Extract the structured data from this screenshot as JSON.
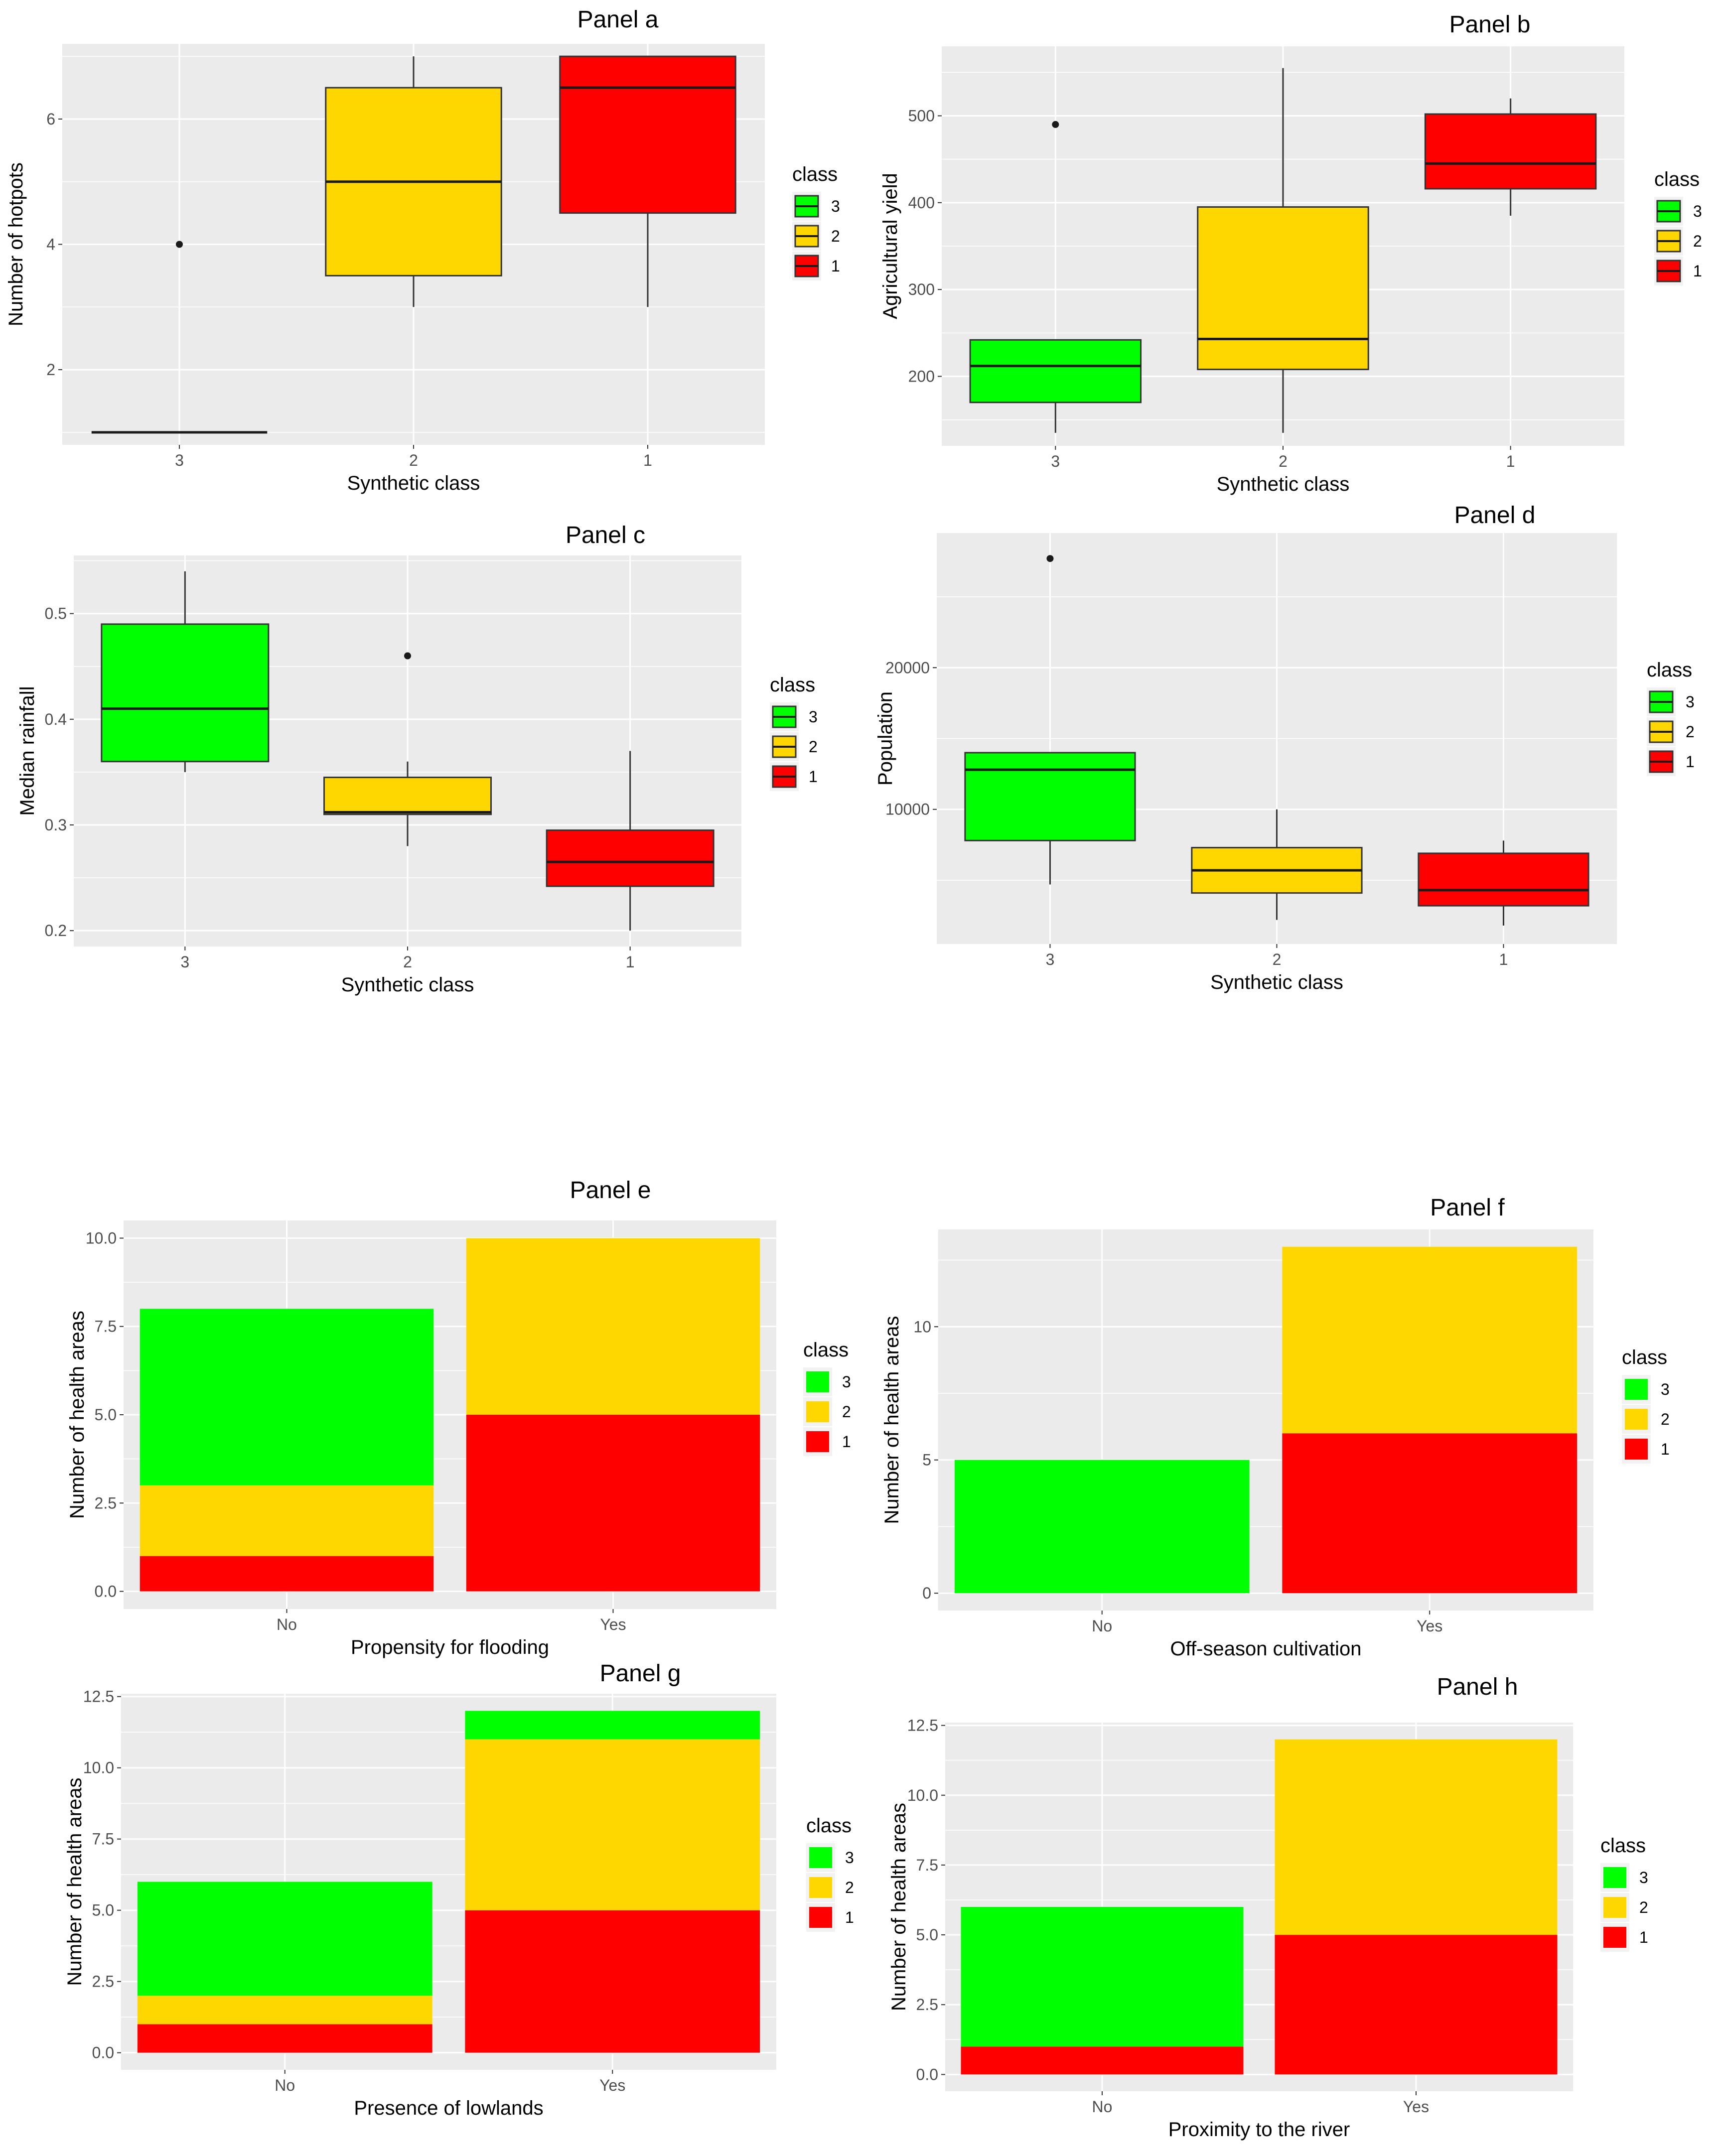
{
  "colors": {
    "class_3": "#00ff00",
    "class_2": "#ffd700",
    "class_1": "#ff0000",
    "panel_bg": "#ebebeb",
    "grid": "#ffffff"
  },
  "chart_data": [
    {
      "id": "a",
      "type": "box",
      "title": "Panel a",
      "xlabel": "Synthetic class",
      "ylabel": "Number of hotpots",
      "ylim": [
        0.8,
        7.2
      ],
      "yticks": [
        2,
        4,
        6
      ],
      "categories": [
        "3",
        "2",
        "1"
      ],
      "boxes": [
        {
          "class": "3",
          "min": 1,
          "q1": 1,
          "median": 1,
          "q3": 1,
          "max": 1,
          "outliers": [
            4
          ]
        },
        {
          "class": "2",
          "min": 3,
          "q1": 3.5,
          "median": 5,
          "q3": 6.5,
          "max": 7,
          "outliers": []
        },
        {
          "class": "1",
          "min": 3,
          "q1": 4.5,
          "median": 6.5,
          "q3": 7,
          "max": 7,
          "outliers": []
        }
      ],
      "legend": {
        "title": "class",
        "entries": [
          "3",
          "2",
          "1"
        ]
      }
    },
    {
      "id": "b",
      "type": "box",
      "title": "Panel b",
      "xlabel": "Synthetic class",
      "ylabel": "Agricultural yield",
      "ylim": [
        120,
        580
      ],
      "yticks": [
        200,
        300,
        400,
        500
      ],
      "categories": [
        "3",
        "2",
        "1"
      ],
      "boxes": [
        {
          "class": "3",
          "min": 135,
          "q1": 170,
          "median": 212,
          "q3": 242,
          "max": 242,
          "outliers": [
            490
          ]
        },
        {
          "class": "2",
          "min": 135,
          "q1": 208,
          "median": 243,
          "q3": 395,
          "max": 555,
          "outliers": []
        },
        {
          "class": "1",
          "min": 385,
          "q1": 416,
          "median": 445,
          "q3": 502,
          "max": 520,
          "outliers": []
        }
      ],
      "legend": {
        "title": "class",
        "entries": [
          "3",
          "2",
          "1"
        ]
      }
    },
    {
      "id": "c",
      "type": "box",
      "title": "Panel c",
      "xlabel": "Synthetic class",
      "ylabel": "Median rainfall",
      "ylim": [
        0.185,
        0.555
      ],
      "yticks": [
        0.2,
        0.3,
        0.4,
        0.5
      ],
      "categories": [
        "3",
        "2",
        "1"
      ],
      "boxes": [
        {
          "class": "3",
          "min": 0.35,
          "q1": 0.36,
          "median": 0.41,
          "q3": 0.49,
          "max": 0.54,
          "outliers": []
        },
        {
          "class": "2",
          "min": 0.28,
          "q1": 0.31,
          "median": 0.312,
          "q3": 0.345,
          "max": 0.36,
          "outliers": [
            0.46
          ]
        },
        {
          "class": "1",
          "min": 0.2,
          "q1": 0.242,
          "median": 0.265,
          "q3": 0.295,
          "max": 0.37,
          "outliers": []
        }
      ],
      "legend": {
        "title": "class",
        "entries": [
          "3",
          "2",
          "1"
        ]
      }
    },
    {
      "id": "d",
      "type": "box",
      "title": "Panel d",
      "xlabel": "Synthetic class",
      "ylabel": "Population",
      "ylim": [
        500,
        29500
      ],
      "yticks": [
        10000,
        20000
      ],
      "categories": [
        "3",
        "2",
        "1"
      ],
      "boxes": [
        {
          "class": "3",
          "min": 4700,
          "q1": 7800,
          "median": 12800,
          "q3": 14000,
          "max": 14000,
          "outliers": [
            27700
          ]
        },
        {
          "class": "2",
          "min": 2200,
          "q1": 4100,
          "median": 5700,
          "q3": 7300,
          "max": 10000,
          "outliers": []
        },
        {
          "class": "1",
          "min": 1800,
          "q1": 3200,
          "median": 4300,
          "q3": 6900,
          "max": 7800,
          "outliers": []
        }
      ],
      "legend": {
        "title": "class",
        "entries": [
          "3",
          "2",
          "1"
        ]
      }
    },
    {
      "id": "e",
      "type": "bar",
      "stacked": true,
      "title": "Panel e",
      "xlabel": "Propensity for flooding",
      "ylabel": "Number of health areas",
      "categories": [
        "No",
        "Yes"
      ],
      "ylim": [
        -0.5,
        10.5
      ],
      "yticks": [
        "0.0",
        "2.5",
        "5.0",
        "7.5",
        "10.0"
      ],
      "series": [
        {
          "name": "1",
          "values": [
            1,
            5
          ]
        },
        {
          "name": "2",
          "values": [
            2,
            5
          ]
        },
        {
          "name": "3",
          "values": [
            5,
            0
          ]
        }
      ],
      "legend": {
        "title": "class",
        "entries": [
          "3",
          "2",
          "1"
        ]
      }
    },
    {
      "id": "f",
      "type": "bar",
      "stacked": true,
      "title": "Panel f",
      "xlabel": "Off-season cultivation",
      "ylabel": "Number of health areas",
      "categories": [
        "No",
        "Yes"
      ],
      "ylim": [
        -0.65,
        13.65
      ],
      "yticks": [
        "0",
        "5",
        "10"
      ],
      "series": [
        {
          "name": "1",
          "values": [
            0,
            6
          ]
        },
        {
          "name": "2",
          "values": [
            0,
            7
          ]
        },
        {
          "name": "3",
          "values": [
            5,
            0
          ]
        }
      ],
      "legend": {
        "title": "class",
        "entries": [
          "3",
          "2",
          "1"
        ]
      }
    },
    {
      "id": "g",
      "type": "bar",
      "stacked": true,
      "title": "Panel g",
      "xlabel": "Presence of lowlands",
      "ylabel": "Number of health areas",
      "categories": [
        "No",
        "Yes"
      ],
      "ylim": [
        -0.6,
        12.6
      ],
      "yticks": [
        "0.0",
        "2.5",
        "5.0",
        "7.5",
        "10.0",
        "12.5"
      ],
      "series": [
        {
          "name": "1",
          "values": [
            1,
            5
          ]
        },
        {
          "name": "2",
          "values": [
            1,
            6
          ]
        },
        {
          "name": "3",
          "values": [
            4,
            1
          ]
        }
      ],
      "legend": {
        "title": "class",
        "entries": [
          "3",
          "2",
          "1"
        ]
      }
    },
    {
      "id": "h",
      "type": "bar",
      "stacked": true,
      "title": "Panel h",
      "xlabel": "Proximity to the river",
      "ylabel": "Number of health areas",
      "categories": [
        "No",
        "Yes"
      ],
      "ylim": [
        -0.6,
        12.6
      ],
      "yticks": [
        "0.0",
        "2.5",
        "5.0",
        "7.5",
        "10.0",
        "12.5"
      ],
      "series": [
        {
          "name": "1",
          "values": [
            1,
            5
          ]
        },
        {
          "name": "2",
          "values": [
            0,
            7
          ]
        },
        {
          "name": "3",
          "values": [
            5,
            0
          ]
        }
      ],
      "legend": {
        "title": "class",
        "entries": [
          "3",
          "2",
          "1"
        ]
      }
    }
  ]
}
